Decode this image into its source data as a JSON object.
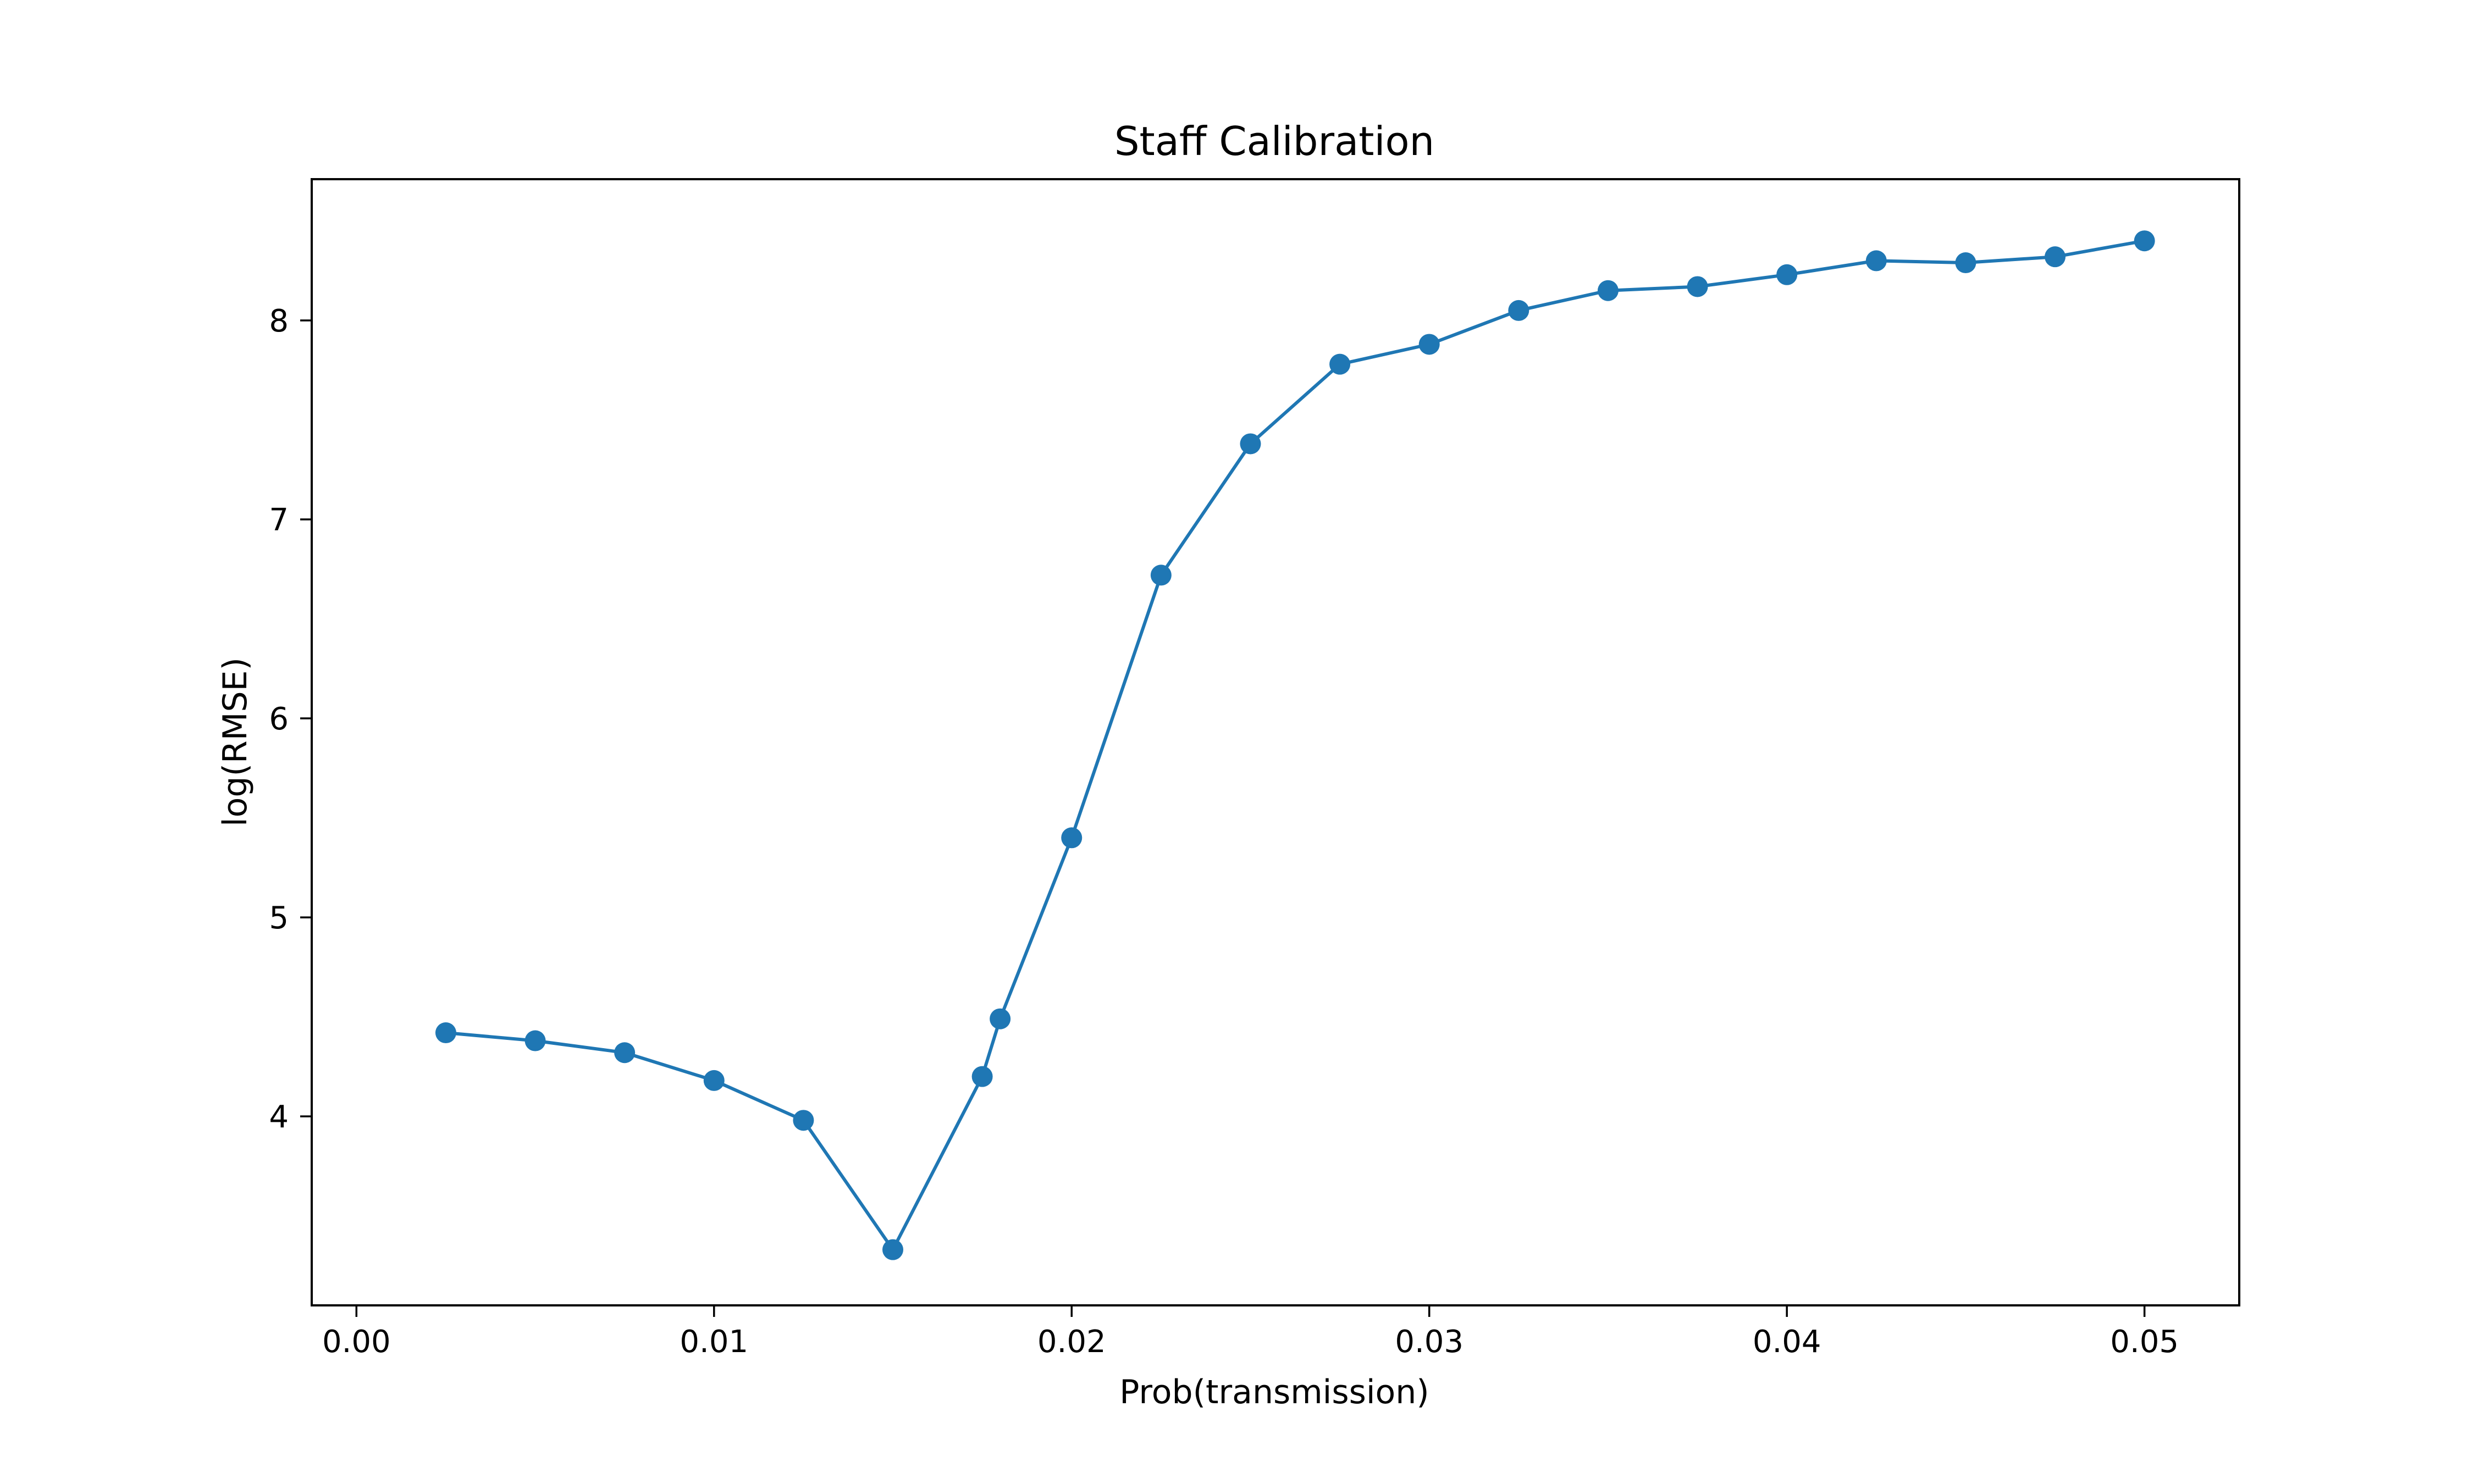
{
  "chart_data": {
    "type": "line",
    "title": "Staff Calibration",
    "xlabel": "Prob(transmission)",
    "ylabel": "log(RMSE)",
    "xlim": [
      -0.00125,
      0.05265
    ],
    "ylim": [
      3.05,
      8.71
    ],
    "xticks": [
      0.0,
      0.01,
      0.02,
      0.03,
      0.04,
      0.05
    ],
    "xtick_labels": [
      "0.00",
      "0.01",
      "0.02",
      "0.03",
      "0.04",
      "0.05"
    ],
    "yticks": [
      4,
      5,
      6,
      7,
      8
    ],
    "ytick_labels": [
      "4",
      "5",
      "6",
      "7",
      "8"
    ],
    "grid": false,
    "series": [
      {
        "color": "#1f77b4",
        "marker": "circle",
        "x": [
          0.0025,
          0.005,
          0.0075,
          0.01,
          0.0125,
          0.015,
          0.0175,
          0.018,
          0.02,
          0.0225,
          0.025,
          0.0275,
          0.03,
          0.0325,
          0.035,
          0.0375,
          0.04,
          0.0425,
          0.045,
          0.0475,
          0.05
        ],
        "y": [
          4.42,
          4.38,
          4.32,
          4.18,
          3.98,
          3.33,
          4.2,
          4.49,
          5.4,
          6.72,
          7.38,
          7.78,
          7.88,
          8.05,
          8.15,
          8.17,
          8.23,
          8.3,
          8.29,
          8.32,
          8.4
        ]
      }
    ]
  }
}
